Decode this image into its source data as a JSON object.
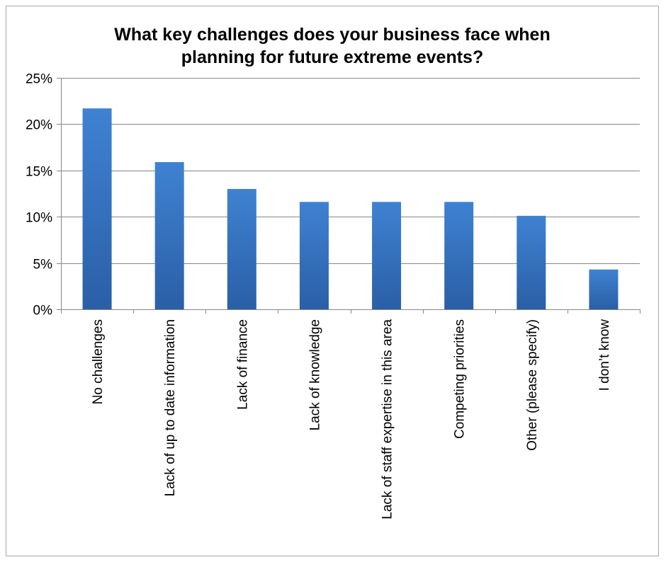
{
  "chart_data": {
    "type": "bar",
    "title": "What key challenges does your business face when planning for future extreme events?",
    "categories": [
      "No challenges",
      "Lack of up to date information",
      "Lack of finance",
      "Lack of knowledge",
      "Lack of staff expertise in this area",
      "Competing priorities",
      "Other (please specify)",
      "I don’t know"
    ],
    "series": [
      {
        "values": [
          21.7,
          15.9,
          13.0,
          11.6,
          11.6,
          11.6,
          10.1,
          4.3
        ]
      }
    ],
    "ylim": [
      0,
      25
    ],
    "yticks": [
      0,
      5,
      10,
      15,
      20,
      25
    ],
    "ytick_format": "%",
    "xlabel": "",
    "ylabel": "",
    "grid": true,
    "legend": "none",
    "colors": {
      "bar_top": "#3f82d2",
      "bar_bottom": "#2a5fa6",
      "grid": "#868686",
      "axis": "#868686"
    }
  }
}
